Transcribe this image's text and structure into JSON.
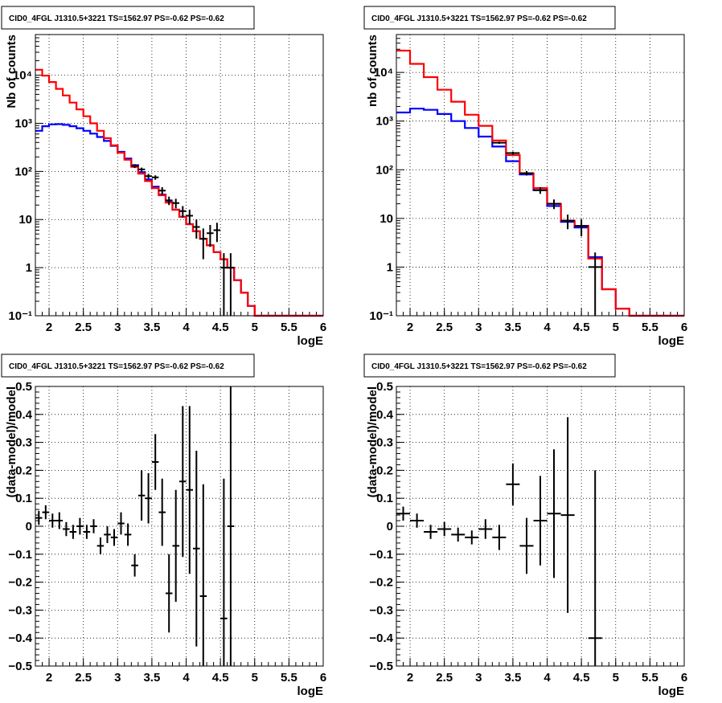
{
  "colors": {
    "data": "#000000",
    "total_model": "#ff0000",
    "source_model": "#0000ff"
  },
  "chart_data": [
    {
      "type": "histogram",
      "title": "CID0_4FGL J1310.5+3221 TS=1562.97 PS=-0.62 PS=-0.62",
      "xlabel": "logE",
      "ylabel": "Nb of counts",
      "xlim": [
        1.8,
        6.0
      ],
      "ylim": [
        0.1,
        70000
      ],
      "yscale": "log",
      "grid": true,
      "x_ticks": [
        "2",
        "2.5",
        "3",
        "3.5",
        "4",
        "4.5",
        "5",
        "5.5",
        "6"
      ],
      "y_ticks": [
        "10⁻¹",
        "1",
        "10",
        "10²",
        "10³",
        "10⁴"
      ],
      "bin_edges": [
        1.8,
        1.9,
        2.0,
        2.1,
        2.2,
        2.3,
        2.4,
        2.5,
        2.6,
        2.7,
        2.8,
        2.9,
        3.0,
        3.1,
        3.2,
        3.3,
        3.4,
        3.5,
        3.6,
        3.7,
        3.8,
        3.9,
        4.0,
        4.1,
        4.2,
        4.3,
        4.4,
        4.5,
        4.6,
        4.7,
        4.8,
        4.9,
        5.0,
        5.1,
        5.2,
        5.3,
        5.4,
        5.5,
        5.6,
        5.7,
        5.8,
        5.9,
        6.0
      ],
      "series": [
        {
          "role": "total_model",
          "values": [
            13000,
            9800,
            7200,
            5200,
            3800,
            2700,
            1950,
            1400,
            1000,
            700,
            490,
            350,
            245,
            175,
            125,
            90,
            63,
            45,
            32,
            22.5,
            16,
            11.4,
            8.0,
            5.7,
            4.0,
            2.9,
            2.1,
            1.5,
            1.0,
            0.55,
            0.3,
            0.16,
            0.1,
            0.1,
            0.1,
            0.1,
            0.1,
            0.1,
            0.1,
            0.1,
            0.1,
            0.1
          ]
        },
        {
          "role": "source_model",
          "values": [
            700,
            870,
            950,
            960,
            930,
            870,
            790,
            700,
            610,
            520,
            430,
            340,
            255,
            185,
            135,
            97,
            68,
            48,
            33,
            23,
            16,
            11.4,
            8.0,
            5.7,
            4.0,
            2.9,
            2.1,
            1.5,
            1.0,
            0.55,
            0.3,
            0.16,
            0.1,
            0.1,
            0.1,
            0.1,
            0.1,
            0.1,
            0.1,
            0.1,
            0.1,
            0.1
          ]
        }
      ],
      "points": [
        {
          "x": 3.25,
          "y": 130,
          "yerr": 12
        },
        {
          "x": 3.35,
          "y": 110,
          "yerr": 10
        },
        {
          "x": 3.45,
          "y": 80,
          "yerr": 9
        },
        {
          "x": 3.55,
          "y": 75,
          "yerr": 8
        },
        {
          "x": 3.65,
          "y": 40,
          "yerr": 7
        },
        {
          "x": 3.75,
          "y": 25,
          "yerr": 5
        },
        {
          "x": 3.85,
          "y": 22,
          "yerr": 5
        },
        {
          "x": 3.95,
          "y": 15,
          "yerr": 4
        },
        {
          "x": 4.05,
          "y": 12,
          "yerr": 4
        },
        {
          "x": 4.15,
          "y": 7,
          "yerr": 3
        },
        {
          "x": 4.25,
          "y": 4,
          "yerr": 2.5
        },
        {
          "x": 4.35,
          "y": 5.2,
          "yerr": 2.5
        },
        {
          "x": 4.45,
          "y": 6,
          "yerr": 2.6
        },
        {
          "x": 4.55,
          "y": 1,
          "yerr": 1.0
        },
        {
          "x": 4.65,
          "y": 1,
          "yerr": 1.0
        }
      ]
    },
    {
      "type": "histogram",
      "title": "CID0_4FGL J1310.5+3221 TS=1562.97 PS=-0.62 PS=-0.62",
      "xlabel": "logE",
      "ylabel": "nb of counts",
      "xlim": [
        1.8,
        6.0
      ],
      "ylim": [
        0.1,
        60000
      ],
      "yscale": "log",
      "grid": true,
      "x_ticks": [
        "2",
        "2.5",
        "3",
        "3.5",
        "4",
        "4.5",
        "5",
        "5.5",
        "6"
      ],
      "y_ticks": [
        "10⁻¹",
        "1",
        "10",
        "10²",
        "10³",
        "10⁴"
      ],
      "bin_edges": [
        1.8,
        2.0,
        2.2,
        2.4,
        2.6,
        2.8,
        3.0,
        3.2,
        3.4,
        3.6,
        3.8,
        4.0,
        4.2,
        4.4,
        4.6,
        4.8,
        5.0,
        5.2,
        5.4,
        5.6,
        5.8,
        6.0
      ],
      "series": [
        {
          "role": "total_model",
          "values": [
            28000,
            15000,
            8000,
            4400,
            2500,
            1350,
            800,
            400,
            200,
            85,
            42,
            20,
            9,
            7,
            1.5,
            0.35,
            0.14,
            0.1,
            0.1,
            0.1,
            0.1
          ]
        },
        {
          "role": "source_model",
          "values": [
            1500,
            1800,
            1700,
            1400,
            1000,
            720,
            480,
            300,
            150,
            80,
            38,
            18,
            8.5,
            6.5,
            1.6,
            0.35,
            0.14,
            0.1,
            0.1,
            0.1,
            0.1
          ]
        }
      ],
      "points": [
        {
          "x": 3.3,
          "y": 360,
          "yerr": 20
        },
        {
          "x": 3.5,
          "y": 220,
          "yerr": 16
        },
        {
          "x": 3.7,
          "y": 85,
          "yerr": 9
        },
        {
          "x": 3.9,
          "y": 38,
          "yerr": 6
        },
        {
          "x": 4.1,
          "y": 20,
          "yerr": 4.5
        },
        {
          "x": 4.3,
          "y": 9,
          "yerr": 3
        },
        {
          "x": 4.5,
          "y": 7,
          "yerr": 2.7
        },
        {
          "x": 4.7,
          "y": 1,
          "yerr": 1
        }
      ]
    },
    {
      "type": "scatter",
      "title": "CID0_4FGL J1310.5+3221 TS=1562.97 PS=-0.62 PS=-0.62",
      "xlabel": "logE",
      "ylabel": "(data-model)/model",
      "xlim": [
        1.8,
        6.0
      ],
      "ylim": [
        -0.5,
        0.5
      ],
      "grid": true,
      "x_ticks": [
        "2",
        "2.5",
        "3",
        "3.5",
        "4",
        "4.5",
        "5",
        "5.5",
        "6"
      ],
      "y_ticks": [
        "−0.5",
        "−0.4",
        "−0.3",
        "−0.2",
        "−0.1",
        "0",
        "0.1",
        "0.2",
        "0.3",
        "0.4",
        "0.5"
      ],
      "y_tick_values": [
        -0.5,
        -0.4,
        -0.3,
        -0.2,
        -0.1,
        0,
        0.1,
        0.2,
        0.3,
        0.4,
        0.5
      ],
      "xerr": 0.05,
      "points": [
        {
          "x": 1.85,
          "y": 0.03,
          "yerr": 0.025
        },
        {
          "x": 1.95,
          "y": 0.05,
          "yerr": 0.025
        },
        {
          "x": 2.05,
          "y": 0.02,
          "yerr": 0.025
        },
        {
          "x": 2.15,
          "y": 0.02,
          "yerr": 0.03
        },
        {
          "x": 2.25,
          "y": -0.01,
          "yerr": 0.025
        },
        {
          "x": 2.35,
          "y": -0.02,
          "yerr": 0.025
        },
        {
          "x": 2.45,
          "y": 0.0,
          "yerr": 0.03
        },
        {
          "x": 2.55,
          "y": -0.02,
          "yerr": 0.025
        },
        {
          "x": 2.65,
          "y": 0.0,
          "yerr": 0.025
        },
        {
          "x": 2.75,
          "y": -0.07,
          "yerr": 0.03
        },
        {
          "x": 2.85,
          "y": -0.03,
          "yerr": 0.03
        },
        {
          "x": 2.95,
          "y": -0.04,
          "yerr": 0.03
        },
        {
          "x": 3.05,
          "y": 0.01,
          "yerr": 0.04
        },
        {
          "x": 3.15,
          "y": -0.03,
          "yerr": 0.04
        },
        {
          "x": 3.25,
          "y": -0.14,
          "yerr": 0.04
        },
        {
          "x": 3.35,
          "y": 0.11,
          "yerr": 0.09
        },
        {
          "x": 3.45,
          "y": 0.1,
          "yerr": 0.09
        },
        {
          "x": 3.55,
          "y": 0.23,
          "yerr": 0.1
        },
        {
          "x": 3.65,
          "y": 0.05,
          "yerr": 0.12
        },
        {
          "x": 3.75,
          "y": -0.24,
          "yerr": 0.14
        },
        {
          "x": 3.85,
          "y": -0.07,
          "yerr": 0.2
        },
        {
          "x": 3.95,
          "y": 0.16,
          "yerr": 0.27
        },
        {
          "x": 4.05,
          "y": 0.13,
          "yerr": 0.3
        },
        {
          "x": 4.15,
          "y": -0.08,
          "yerr": 0.35
        },
        {
          "x": 4.25,
          "y": -0.25,
          "yerr": 0.4
        },
        {
          "x": 4.55,
          "y": -0.33,
          "yerr": 0.5
        },
        {
          "x": 4.65,
          "y": 0.0,
          "yerr": 0.5
        }
      ]
    },
    {
      "type": "scatter",
      "title": "CID0_4FGL J1310.5+3221 TS=1562.97 PS=-0.62 PS=-0.62",
      "xlabel": "logE",
      "ylabel": "(data-model)/model",
      "xlim": [
        1.8,
        6.0
      ],
      "ylim": [
        -0.5,
        0.5
      ],
      "grid": true,
      "x_ticks": [
        "2",
        "2.5",
        "3",
        "3.5",
        "4",
        "4.5",
        "5",
        "5.5",
        "6"
      ],
      "y_ticks": [
        "−0.5",
        "−0.4",
        "−0.3",
        "−0.2",
        "−0.1",
        "0",
        "0.1",
        "0.2",
        "0.3",
        "0.4",
        "0.5"
      ],
      "y_tick_values": [
        -0.5,
        -0.4,
        -0.3,
        -0.2,
        -0.1,
        0,
        0.1,
        0.2,
        0.3,
        0.4,
        0.5
      ],
      "xerr": 0.1,
      "points": [
        {
          "x": 1.9,
          "y": 0.045,
          "yerr": 0.025
        },
        {
          "x": 2.1,
          "y": 0.02,
          "yerr": 0.025
        },
        {
          "x": 2.3,
          "y": -0.02,
          "yerr": 0.025
        },
        {
          "x": 2.5,
          "y": -0.01,
          "yerr": 0.025
        },
        {
          "x": 2.7,
          "y": -0.03,
          "yerr": 0.025
        },
        {
          "x": 2.9,
          "y": -0.04,
          "yerr": 0.025
        },
        {
          "x": 3.1,
          "y": -0.01,
          "yerr": 0.035
        },
        {
          "x": 3.3,
          "y": -0.04,
          "yerr": 0.045
        },
        {
          "x": 3.5,
          "y": 0.15,
          "yerr": 0.075
        },
        {
          "x": 3.7,
          "y": -0.07,
          "yerr": 0.1
        },
        {
          "x": 3.9,
          "y": 0.02,
          "yerr": 0.16
        },
        {
          "x": 4.1,
          "y": 0.045,
          "yerr": 0.23
        },
        {
          "x": 4.3,
          "y": 0.04,
          "yerr": 0.35
        },
        {
          "x": 4.7,
          "y": -0.4,
          "yerr": 0.6
        }
      ]
    }
  ]
}
